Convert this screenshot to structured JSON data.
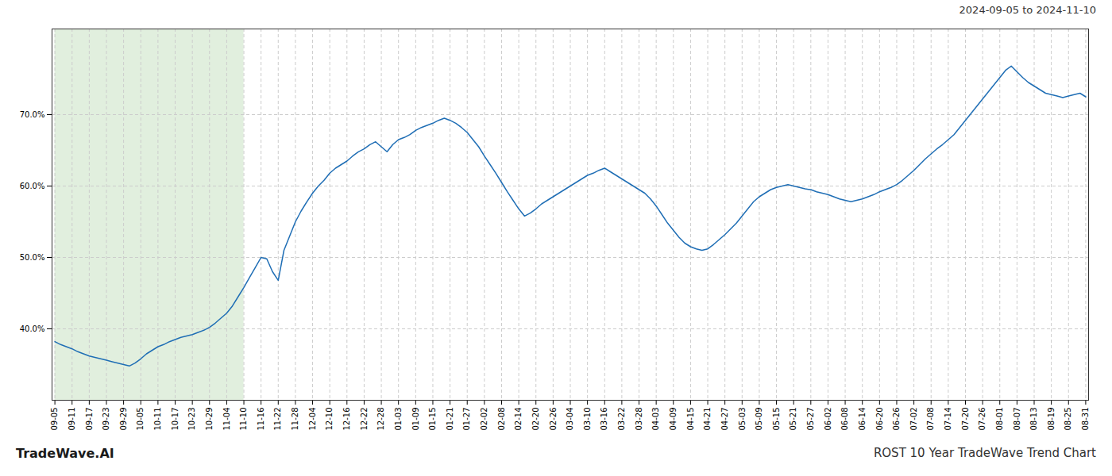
{
  "chart_data": {
    "type": "line",
    "title": "ROST 10 Year TradeWave Trend Chart",
    "subtitle": "2024-09-05 to 2024-11-10",
    "annotations": [
      "TradeWave.AI"
    ],
    "color": "#1f6eb5",
    "grid": true,
    "shade": {
      "from": "09-05",
      "to": "11-10",
      "color": "#d4e8d0"
    },
    "ylim": [
      0.3,
      0.82
    ],
    "yticks": [
      {
        "value": 0.4,
        "label": "40.0%"
      },
      {
        "value": 0.5,
        "label": "50.0%"
      },
      {
        "value": 0.6,
        "label": "60.0%"
      },
      {
        "value": 0.7,
        "label": "70.0%"
      }
    ],
    "categories": [
      "09-05",
      null,
      null,
      "09-11",
      null,
      null,
      "09-17",
      null,
      null,
      "09-23",
      null,
      null,
      "09-29",
      null,
      null,
      "10-05",
      null,
      null,
      "10-11",
      null,
      null,
      "10-17",
      null,
      null,
      "10-23",
      null,
      null,
      "10-29",
      null,
      null,
      "11-04",
      null,
      null,
      "11-10",
      null,
      null,
      "11-16",
      null,
      null,
      "11-22",
      null,
      null,
      "11-28",
      null,
      null,
      "12-04",
      null,
      null,
      "12-10",
      null,
      null,
      "12-16",
      null,
      null,
      "12-22",
      null,
      null,
      "12-28",
      null,
      null,
      "01-03",
      null,
      null,
      "01-09",
      null,
      null,
      "01-15",
      null,
      null,
      "01-21",
      null,
      null,
      "01-27",
      null,
      null,
      "02-02",
      null,
      null,
      "02-08",
      null,
      null,
      "02-14",
      null,
      null,
      "02-20",
      null,
      null,
      "02-26",
      null,
      null,
      "03-04",
      null,
      null,
      "03-10",
      null,
      null,
      "03-16",
      null,
      null,
      "03-22",
      null,
      null,
      "03-28",
      null,
      null,
      "04-03",
      null,
      null,
      "04-09",
      null,
      null,
      "04-15",
      null,
      null,
      "04-21",
      null,
      null,
      "04-27",
      null,
      null,
      "05-03",
      null,
      null,
      "05-09",
      null,
      null,
      "05-15",
      null,
      null,
      "05-21",
      null,
      null,
      "05-27",
      null,
      null,
      "06-02",
      null,
      null,
      "06-08",
      null,
      null,
      "06-14",
      null,
      null,
      "06-20",
      null,
      null,
      "06-26",
      null,
      null,
      "07-02",
      null,
      null,
      "07-08",
      null,
      null,
      "07-14",
      null,
      null,
      "07-20",
      null,
      null,
      "07-26",
      null,
      null,
      "08-01",
      null,
      null,
      "08-07",
      null,
      null,
      "08-13",
      null,
      null,
      "08-19",
      null,
      null,
      "08-25",
      null,
      null,
      "08-31"
    ],
    "values": [
      0.382,
      0.378,
      0.375,
      0.372,
      0.368,
      0.365,
      0.362,
      0.36,
      0.358,
      0.356,
      0.354,
      0.352,
      0.35,
      0.348,
      0.352,
      0.358,
      0.365,
      0.37,
      0.375,
      0.378,
      0.382,
      0.385,
      0.388,
      0.39,
      0.392,
      0.395,
      0.398,
      0.402,
      0.408,
      0.415,
      0.422,
      0.432,
      0.445,
      0.458,
      0.472,
      0.486,
      0.5,
      0.498,
      0.48,
      0.468,
      0.51,
      0.53,
      0.55,
      0.565,
      0.578,
      0.59,
      0.6,
      0.608,
      0.618,
      0.625,
      0.63,
      0.635,
      0.642,
      0.648,
      0.652,
      0.658,
      0.662,
      0.655,
      0.648,
      0.658,
      0.665,
      0.668,
      0.672,
      0.678,
      0.682,
      0.685,
      0.688,
      0.692,
      0.695,
      0.692,
      0.688,
      0.682,
      0.675,
      0.665,
      0.655,
      0.642,
      0.63,
      0.618,
      0.605,
      0.592,
      0.58,
      0.568,
      0.558,
      0.562,
      0.568,
      0.575,
      0.58,
      0.585,
      0.59,
      0.595,
      0.6,
      0.605,
      0.61,
      0.615,
      0.618,
      0.622,
      0.625,
      0.62,
      0.615,
      0.61,
      0.605,
      0.6,
      0.595,
      0.59,
      0.582,
      0.572,
      0.56,
      0.548,
      0.538,
      0.528,
      0.52,
      0.515,
      0.512,
      0.51,
      0.512,
      0.518,
      0.525,
      0.532,
      0.54,
      0.548,
      0.558,
      0.568,
      0.578,
      0.585,
      0.59,
      0.595,
      0.598,
      0.6,
      0.602,
      0.6,
      0.598,
      0.596,
      0.595,
      0.592,
      0.59,
      0.588,
      0.585,
      0.582,
      0.58,
      0.578,
      0.58,
      0.582,
      0.585,
      0.588,
      0.592,
      0.595,
      0.598,
      0.602,
      0.608,
      0.615,
      0.622,
      0.63,
      0.638,
      0.645,
      0.652,
      0.658,
      0.665,
      0.672,
      0.682,
      0.692,
      0.702,
      0.712,
      0.722,
      0.732,
      0.742,
      0.752,
      0.762,
      0.768,
      0.76,
      0.752,
      0.745,
      0.74,
      0.735,
      0.73,
      0.728,
      0.726,
      0.724,
      0.726,
      0.728,
      0.73,
      0.725
    ]
  }
}
